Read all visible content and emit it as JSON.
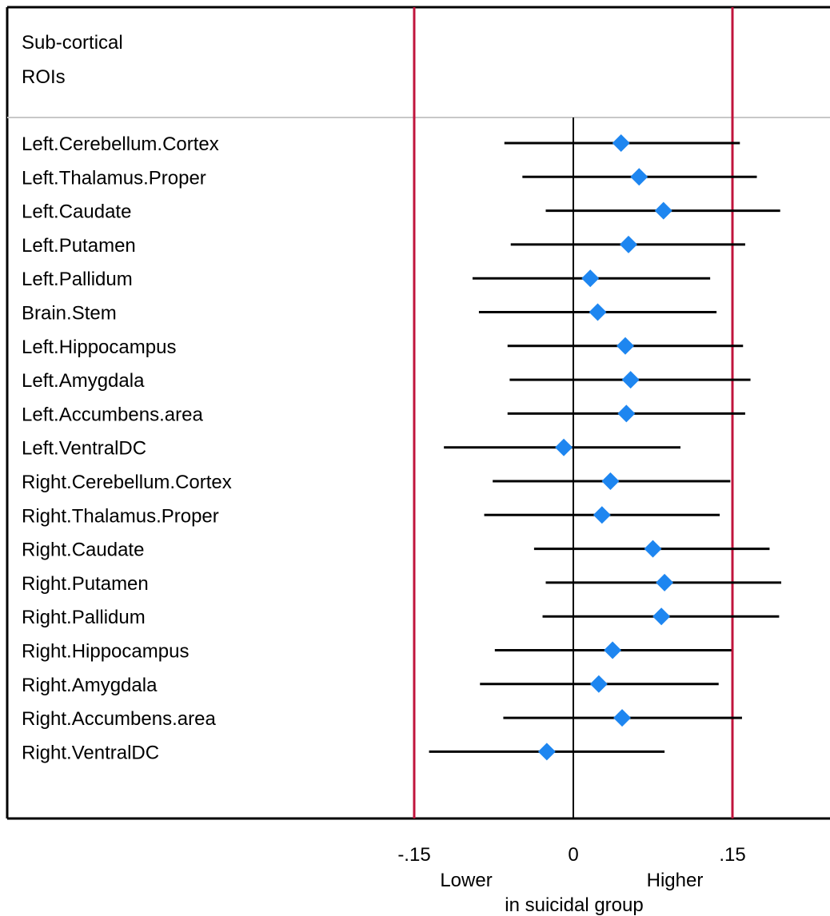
{
  "header": {
    "line1": "Sub-cortical",
    "line2": "ROIs"
  },
  "axis": {
    "ticks": [
      {
        "value": -0.15,
        "label": "-.15"
      },
      {
        "value": 0,
        "label": "0"
      },
      {
        "value": 0.15,
        "label": ".15"
      }
    ],
    "lower_label": "Lower",
    "higher_label": "Higher",
    "caption": "in suicidal group"
  },
  "colors": {
    "reference_lines": "#c0143c",
    "marker": "#1e86f0",
    "ci_line": "#000000",
    "frame": "#000000",
    "header_divider": "#c8c8c8"
  },
  "chart_data": {
    "type": "forest",
    "xlim": [
      -0.15,
      0.24
    ],
    "reference_lines": [
      -0.15,
      0.15
    ],
    "zero_line": 0,
    "rows": [
      {
        "label": "Left.Cerebellum.Cortex",
        "estimate": 0.045,
        "lower": -0.065,
        "upper": 0.157
      },
      {
        "label": "Left.Thalamus.Proper",
        "estimate": 0.062,
        "lower": -0.048,
        "upper": 0.173
      },
      {
        "label": "Left.Caudate",
        "estimate": 0.085,
        "lower": -0.026,
        "upper": 0.195
      },
      {
        "label": "Left.Putamen",
        "estimate": 0.052,
        "lower": -0.059,
        "upper": 0.162
      },
      {
        "label": "Left.Pallidum",
        "estimate": 0.016,
        "lower": -0.095,
        "upper": 0.129
      },
      {
        "label": "Brain.Stem",
        "estimate": 0.023,
        "lower": -0.089,
        "upper": 0.135
      },
      {
        "label": "Left.Hippocampus",
        "estimate": 0.049,
        "lower": -0.062,
        "upper": 0.16
      },
      {
        "label": "Left.Amygdala",
        "estimate": 0.054,
        "lower": -0.06,
        "upper": 0.167
      },
      {
        "label": "Left.Accumbens.area",
        "estimate": 0.05,
        "lower": -0.062,
        "upper": 0.162
      },
      {
        "label": "Left.VentralDC",
        "estimate": -0.009,
        "lower": -0.122,
        "upper": 0.101
      },
      {
        "label": "Right.Cerebellum.Cortex",
        "estimate": 0.035,
        "lower": -0.076,
        "upper": 0.148
      },
      {
        "label": "Right.Thalamus.Proper",
        "estimate": 0.027,
        "lower": -0.084,
        "upper": 0.138
      },
      {
        "label": "Right.Caudate",
        "estimate": 0.075,
        "lower": -0.037,
        "upper": 0.185
      },
      {
        "label": "Right.Putamen",
        "estimate": 0.086,
        "lower": -0.026,
        "upper": 0.196
      },
      {
        "label": "Right.Pallidum",
        "estimate": 0.083,
        "lower": -0.029,
        "upper": 0.194
      },
      {
        "label": "Right.Hippocampus",
        "estimate": 0.037,
        "lower": -0.074,
        "upper": 0.149
      },
      {
        "label": "Right.Amygdala",
        "estimate": 0.024,
        "lower": -0.088,
        "upper": 0.137
      },
      {
        "label": "Right.Accumbens.area",
        "estimate": 0.046,
        "lower": -0.066,
        "upper": 0.159
      },
      {
        "label": "Right.VentralDC",
        "estimate": -0.025,
        "lower": -0.136,
        "upper": 0.086
      }
    ]
  }
}
